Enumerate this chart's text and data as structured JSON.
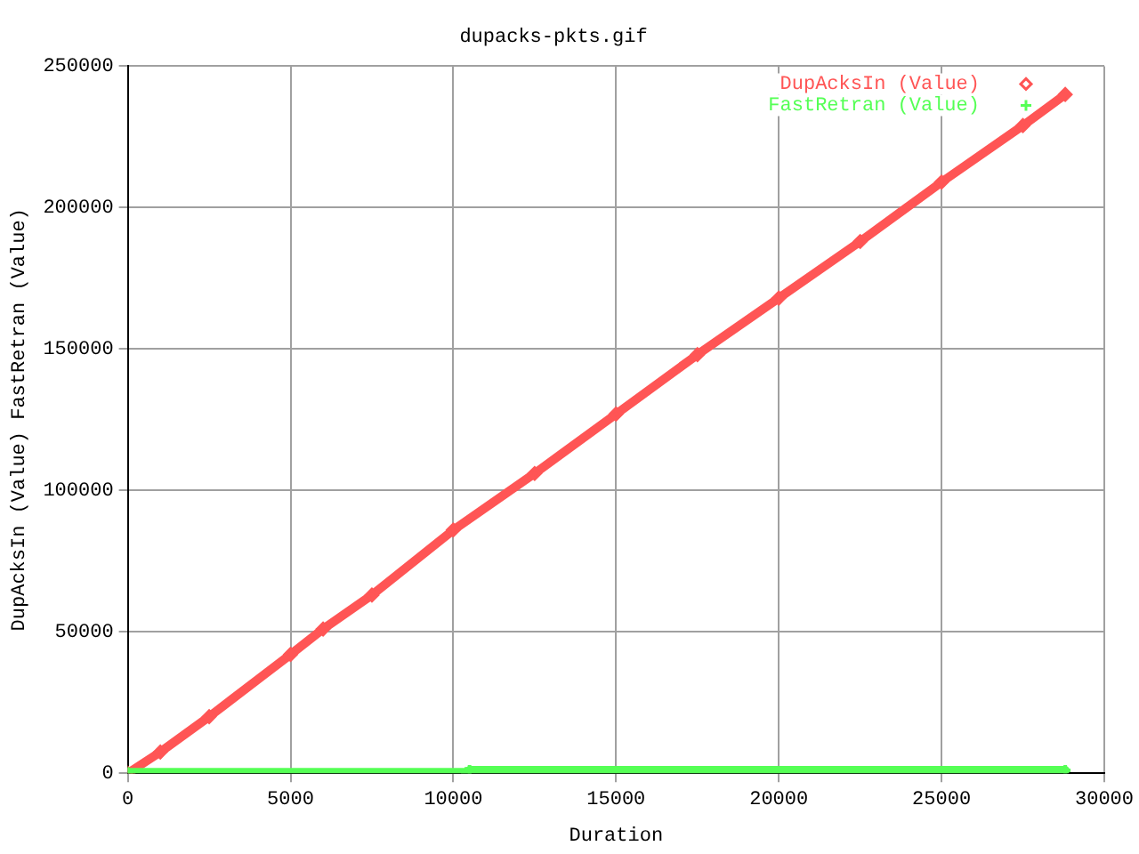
{
  "chart_data": {
    "type": "line",
    "title": "dupacks-pkts.gif",
    "xlabel": "Duration",
    "ylabel": "DupAcksIn (Value) FastRetran (Value)",
    "xlim": [
      0,
      30000
    ],
    "xticks": [
      0,
      5000,
      10000,
      15000,
      20000,
      25000,
      30000
    ],
    "ylim": [
      0,
      250000
    ],
    "yticks": [
      0,
      50000,
      100000,
      150000,
      200000,
      250000
    ],
    "grid": true,
    "legend": "top right",
    "series": [
      {
        "name": "DupAcksIn (Value)",
        "color": "#ff5555",
        "marker": "diamond",
        "x": [
          0,
          1000,
          2500,
          5000,
          6000,
          7500,
          10000,
          12500,
          15000,
          17500,
          20000,
          22500,
          25000,
          27500,
          28800
        ],
        "values": [
          0,
          7500,
          20000,
          42000,
          51000,
          63000,
          86000,
          106000,
          127000,
          148000,
          168000,
          188000,
          209000,
          229000,
          240000
        ]
      },
      {
        "name": "FastRetran (Value)",
        "color": "#55ff55",
        "marker": "cross",
        "x": [
          0,
          10400,
          10500,
          28800
        ],
        "values": [
          300,
          300,
          1000,
          1000
        ]
      }
    ]
  }
}
